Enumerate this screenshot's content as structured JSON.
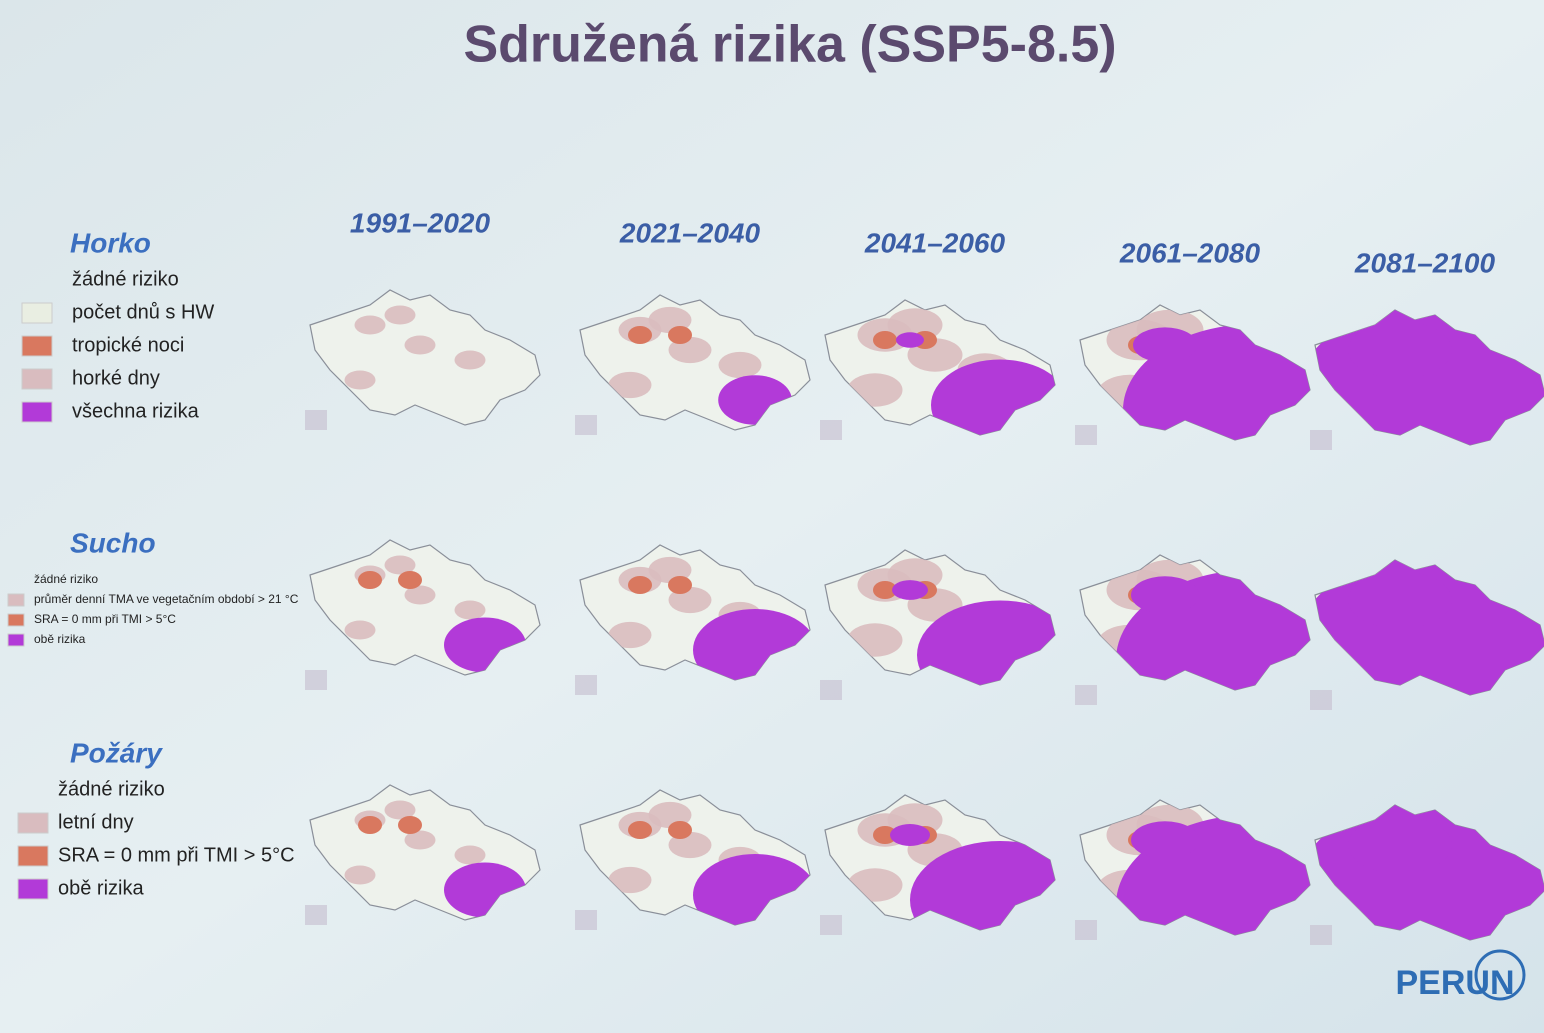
{
  "title": "Sdružená rizika (SSP5-8.5)",
  "periods": [
    "1991–2020",
    "2021–2040",
    "2041–2060",
    "2061–2080",
    "2081–2100"
  ],
  "rows": [
    {
      "label": "Horko",
      "legend": [
        {
          "text": "žádné riziko"
        },
        {
          "text": "počet dnů s HW",
          "color": "#e9eee2"
        },
        {
          "text": "tropické noci",
          "color": "#d9785f"
        },
        {
          "text": "horké dny",
          "color": "#d9bcbf"
        },
        {
          "text": "všechna rizika",
          "color": "#b23ad8"
        }
      ]
    },
    {
      "label": "Sucho",
      "legend": [
        {
          "text": "žádné riziko"
        },
        {
          "text": "průměr denní TMA ve vegetačním období > 21 °C",
          "color": "#d9bcbf"
        },
        {
          "text": "SRA = 0 mm při TMI > 5°C",
          "color": "#d9785f"
        },
        {
          "text": "obě rizika",
          "color": "#b23ad8"
        }
      ]
    },
    {
      "label": "Požáry",
      "legend": [
        {
          "text": "žádné riziko"
        },
        {
          "text": "letní dny",
          "color": "#d9bcbf"
        },
        {
          "text": "SRA = 0 mm při TMI > 5°C",
          "color": "#d9785f"
        },
        {
          "text": "obě rizika",
          "color": "#b23ad8"
        }
      ]
    }
  ],
  "logo": "PERUN"
}
